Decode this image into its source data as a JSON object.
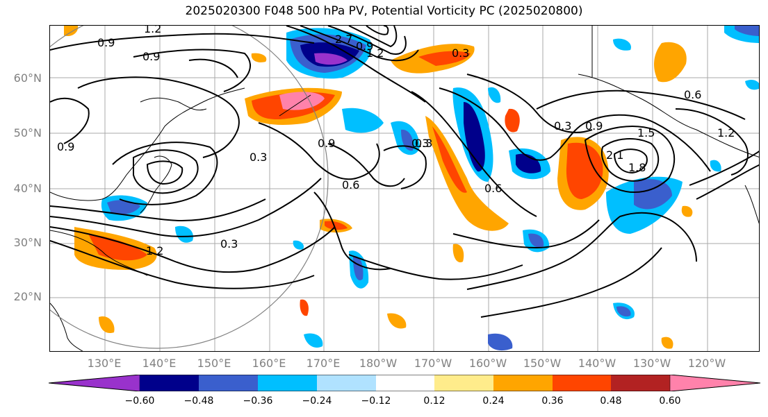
{
  "title": "2025020300 F048 500 hPa PV, Potential Vorticity PC (2025020800)",
  "lat_labels": [
    "60°N",
    "50°N",
    "40°N",
    "30°N",
    "20°N"
  ],
  "lon_labels": [
    "130°E",
    "140°E",
    "150°E",
    "160°E",
    "170°E",
    "180°W",
    "170°W",
    "160°W",
    "150°W",
    "140°W",
    "130°W",
    "120°W"
  ],
  "colorbar": {
    "ticks": [
      "−0.60",
      "−0.48",
      "−0.36",
      "−0.24",
      "−0.12",
      "0.12",
      "0.24",
      "0.36",
      "0.48",
      "0.60"
    ],
    "colors": [
      "#9932cc",
      "#00008b",
      "#3a5fcd",
      "#00bfff",
      "#b0e2ff",
      "#ffffff",
      "#ffec8b",
      "#ffa500",
      "#ff4500",
      "#b22222",
      "#ff82ab"
    ]
  },
  "contour_labels": [
    "1.2",
    "0.9",
    "0.9",
    "1.2",
    "2.7",
    "0.3",
    "0.3",
    "0.6",
    "0.9",
    "0.3",
    "0.9",
    "0.6",
    "0.3",
    "0.6",
    "0.9",
    "1.5",
    "2.1",
    "1.8",
    "1.2",
    "0.3",
    "1.2",
    "0.3",
    "0.9"
  ]
}
